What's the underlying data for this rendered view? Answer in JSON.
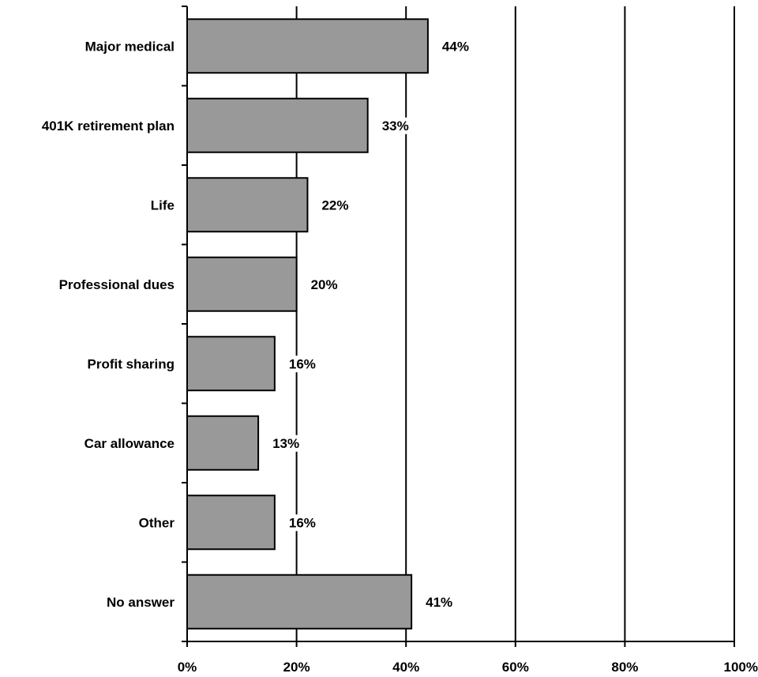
{
  "chart_data": {
    "type": "bar",
    "orientation": "horizontal",
    "categories": [
      "Major medical",
      "401K retirement plan",
      "Life",
      "Professional dues",
      "Profit sharing",
      "Car allowance",
      "Other",
      "No answer"
    ],
    "values": [
      44,
      33,
      22,
      20,
      16,
      13,
      16,
      41
    ],
    "data_labels": [
      "44%",
      "33%",
      "22%",
      "20%",
      "16%",
      "13%",
      "16%",
      "41%"
    ],
    "x_ticks": [
      "0%",
      "20%",
      "40%",
      "60%",
      "80%",
      "100%"
    ],
    "xlim": [
      0,
      100
    ],
    "grid": true,
    "legend": false,
    "bar_color": "#999999",
    "bar_border_color": "#000000"
  }
}
